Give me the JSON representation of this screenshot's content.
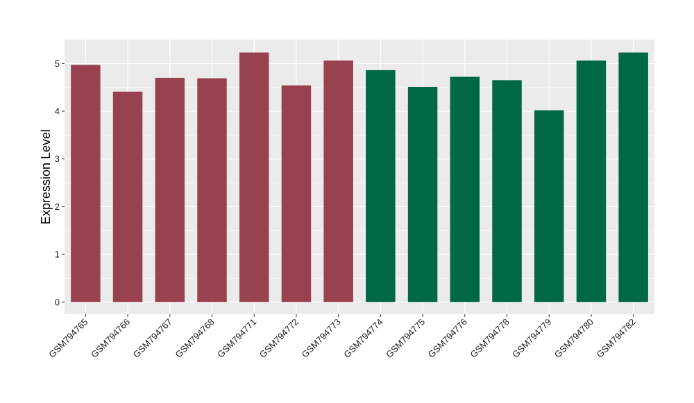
{
  "chart_data": {
    "type": "bar",
    "title": "",
    "xlabel": "",
    "ylabel": "Expression Level",
    "ylim": [
      -0.25,
      5.5
    ],
    "yticks": [
      0,
      1,
      2,
      3,
      4,
      5
    ],
    "grid": true,
    "categories": [
      "GSM794765",
      "GSM794766",
      "GSM794767",
      "GSM794768",
      "GSM794771",
      "GSM794772",
      "GSM794773",
      "GSM794774",
      "GSM794775",
      "GSM794776",
      "GSM794778",
      "GSM794779",
      "GSM794780",
      "GSM794782"
    ],
    "values": [
      4.97,
      4.41,
      4.7,
      4.69,
      5.23,
      4.54,
      5.06,
      4.86,
      4.51,
      4.72,
      4.65,
      4.02,
      5.06,
      5.23
    ],
    "groups": [
      1,
      1,
      1,
      1,
      1,
      1,
      1,
      2,
      2,
      2,
      2,
      2,
      2,
      2
    ],
    "group_colors": {
      "1": "#99424f",
      "2": "#006845"
    },
    "panel_background": "#ebebeb",
    "grid_color": "#ffffff"
  }
}
